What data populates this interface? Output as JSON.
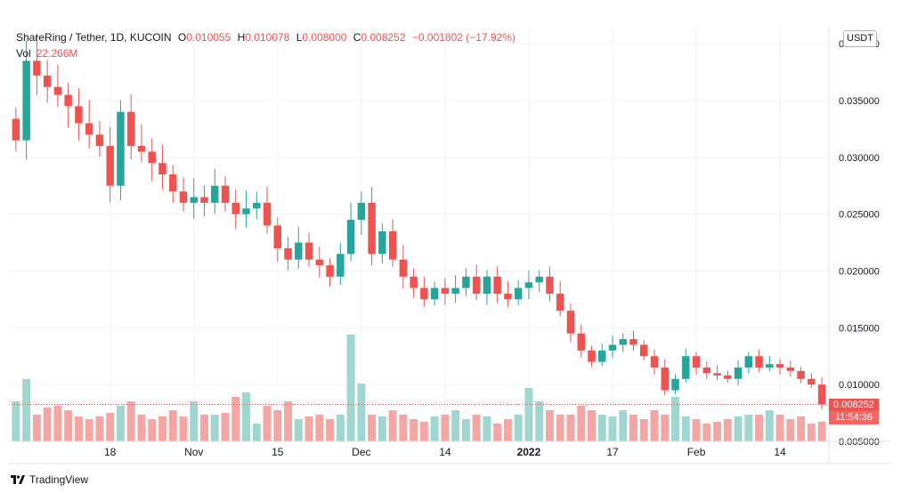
{
  "header": {
    "symbol": "ShareRing / Tether, 1D, KUCOIN",
    "open_label": "O",
    "open": "0.010055",
    "high_label": "H",
    "high": "0.010078",
    "low_label": "L",
    "low": "0.008000",
    "close_label": "C",
    "close": "0.008252",
    "change": "−0.001802 (−17.92%)",
    "vol_label": "Vol",
    "vol_value": "22.266M"
  },
  "currency_button": "USDT",
  "branding": "TradingView",
  "last_price_tag": "0.008252",
  "countdown_tag": "11:54:36",
  "colors": {
    "up": "#26a69a",
    "down": "#ef5350",
    "up_volume": "#9fd6cf",
    "down_volume": "#f3a6a4",
    "grid": "#f0f3fa"
  },
  "chart_data": {
    "type": "candlestick",
    "title": "ShareRing / Tether, 1D, KUCOIN",
    "y_axis": {
      "ticks": [
        "0.040000",
        "0.035000",
        "0.030000",
        "0.025000",
        "0.020000",
        "0.015000",
        "0.010000",
        "0.005000"
      ],
      "range": [
        0.005,
        0.0415
      ],
      "side": "right"
    },
    "x_axis": {
      "ticks": [
        "18",
        "Nov",
        "15",
        "Dec",
        "14",
        "2022",
        "17",
        "Feb",
        "14"
      ],
      "tick_index": [
        9,
        17,
        25,
        33,
        41,
        49,
        57,
        65,
        73
      ]
    },
    "grid": true,
    "last_close": 0.008252,
    "closes": [
      0.0315,
      0.0385,
      0.0372,
      0.0362,
      0.0355,
      0.0345,
      0.033,
      0.032,
      0.031,
      0.0275,
      0.034,
      0.031,
      0.0305,
      0.0295,
      0.0285,
      0.027,
      0.026,
      0.0265,
      0.026,
      0.0275,
      0.026,
      0.025,
      0.0255,
      0.026,
      0.024,
      0.022,
      0.021,
      0.0225,
      0.021,
      0.0205,
      0.0195,
      0.0215,
      0.0245,
      0.026,
      0.0215,
      0.0235,
      0.021,
      0.0195,
      0.0185,
      0.0175,
      0.0185,
      0.018,
      0.0185,
      0.0195,
      0.018,
      0.0195,
      0.018,
      0.0175,
      0.0185,
      0.019,
      0.0195,
      0.018,
      0.0165,
      0.0145,
      0.013,
      0.012,
      0.013,
      0.0135,
      0.014,
      0.0135,
      0.0125,
      0.0115,
      0.0095,
      0.0105,
      0.0125,
      0.0115,
      0.011,
      0.0108,
      0.0105,
      0.0115,
      0.0125,
      0.0115,
      0.0118,
      0.0115,
      0.0112,
      0.0105,
      0.01,
      0.00825
    ],
    "volumes_millions": [
      45,
      70,
      30,
      38,
      40,
      35,
      28,
      25,
      28,
      32,
      40,
      45,
      30,
      25,
      28,
      35,
      28,
      45,
      30,
      30,
      32,
      50,
      55,
      20,
      40,
      35,
      45,
      25,
      28,
      30,
      25,
      30,
      120,
      65,
      30,
      28,
      35,
      30,
      25,
      22,
      28,
      30,
      35,
      25,
      30,
      28,
      20,
      25,
      30,
      60,
      45,
      35,
      30,
      30,
      40,
      35,
      30,
      28,
      35,
      30,
      25,
      35,
      30,
      50,
      28,
      25,
      20,
      22,
      25,
      28,
      30,
      30,
      35,
      30,
      25,
      28,
      20,
      22
    ]
  }
}
